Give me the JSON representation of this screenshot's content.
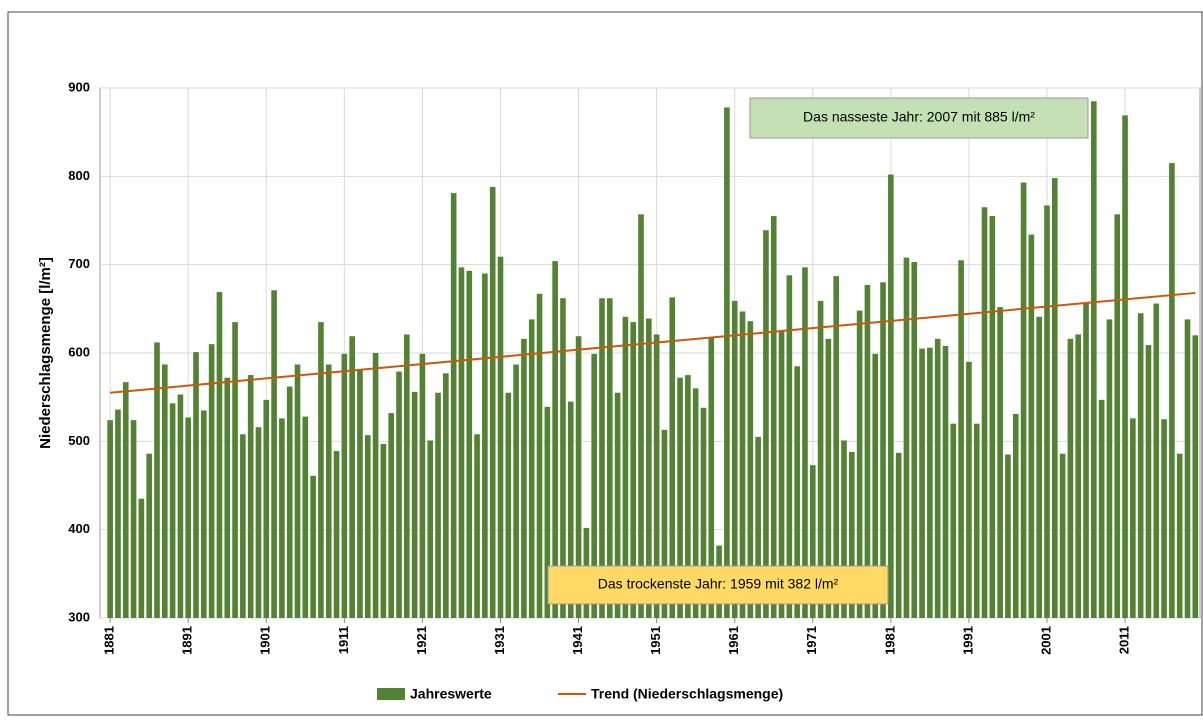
{
  "chart_data": {
    "type": "bar",
    "ylabel": "Niederschlagsmenge [l/m²]",
    "x": [
      1881,
      1882,
      1883,
      1884,
      1885,
      1886,
      1887,
      1888,
      1889,
      1890,
      1891,
      1892,
      1893,
      1894,
      1895,
      1896,
      1897,
      1898,
      1899,
      1900,
      1901,
      1902,
      1903,
      1904,
      1905,
      1906,
      1907,
      1908,
      1909,
      1910,
      1911,
      1912,
      1913,
      1914,
      1915,
      1916,
      1917,
      1918,
      1919,
      1920,
      1921,
      1922,
      1923,
      1924,
      1925,
      1926,
      1927,
      1928,
      1929,
      1930,
      1931,
      1932,
      1933,
      1934,
      1935,
      1936,
      1937,
      1938,
      1939,
      1940,
      1941,
      1942,
      1943,
      1944,
      1945,
      1946,
      1947,
      1948,
      1949,
      1950,
      1951,
      1952,
      1953,
      1954,
      1955,
      1956,
      1957,
      1958,
      1959,
      1960,
      1961,
      1962,
      1963,
      1964,
      1965,
      1966,
      1967,
      1968,
      1969,
      1970,
      1971,
      1972,
      1973,
      1974,
      1975,
      1976,
      1977,
      1978,
      1979,
      1980,
      1981,
      1982,
      1983,
      1984,
      1985,
      1986,
      1987,
      1988,
      1989,
      1990,
      1991,
      1992,
      1993,
      1994,
      1995,
      1996,
      1997,
      1998,
      1999,
      2000,
      2001,
      2002,
      2003,
      2004,
      2005,
      2006,
      2007,
      2008,
      2009,
      2010,
      2011,
      2012,
      2013,
      2014,
      2015,
      2016,
      2017,
      2018,
      2019,
      2020
    ],
    "series": [
      {
        "name": "Jahreswerte",
        "color": "#548235",
        "values": [
          524,
          536,
          567,
          524,
          435,
          486,
          612,
          587,
          543,
          553,
          527,
          601,
          535,
          610,
          669,
          572,
          635,
          508,
          575,
          516,
          547,
          671,
          526,
          562,
          587,
          528,
          461,
          635,
          587,
          489,
          599,
          619,
          581,
          507,
          600,
          497,
          532,
          579,
          621,
          556,
          599,
          501,
          555,
          577,
          781,
          697,
          693,
          508,
          690,
          788,
          709,
          555,
          587,
          616,
          638,
          667,
          539,
          704,
          662,
          545,
          619,
          402,
          599,
          662,
          662,
          555,
          641,
          635,
          757,
          639,
          621,
          513,
          663,
          572,
          575,
          560,
          538,
          617,
          382,
          878,
          659,
          647,
          636,
          505,
          739,
          755,
          625,
          688,
          585,
          697,
          473,
          659,
          616,
          687,
          501,
          488,
          648,
          677,
          599,
          680,
          802,
          487,
          708,
          703,
          605,
          606,
          616,
          608,
          520,
          705,
          590,
          520,
          765,
          755,
          652,
          485,
          531,
          793,
          734,
          641,
          767,
          798,
          486,
          616,
          621,
          656,
          885,
          547,
          638,
          757,
          869,
          526,
          645,
          609,
          656,
          525,
          815,
          486,
          638,
          620
        ]
      }
    ],
    "trend": {
      "name": "Trend (Niederschlagsmenge)",
      "color": "#c55a11",
      "x": [
        1881,
        2020
      ],
      "values": [
        555,
        668
      ]
    },
    "annotations": [
      {
        "text": "Das nasseste Jahr: 2007 mit 885 l/m²",
        "color": "#c5e0b4"
      },
      {
        "text": "Das trockenste Jahr: 1959 mit 382 l/m²",
        "color": "#ffd966"
      }
    ],
    "xlim": [
      1879.7,
      2020.6
    ],
    "xticks": [
      1881,
      1891,
      1901,
      1911,
      1921,
      1931,
      1941,
      1951,
      1961,
      1971,
      1981,
      1991,
      2001,
      2011
    ],
    "ylim": [
      300,
      900
    ],
    "yticks": [
      300,
      400,
      500,
      600,
      700,
      800,
      900
    ],
    "grid": true
  }
}
